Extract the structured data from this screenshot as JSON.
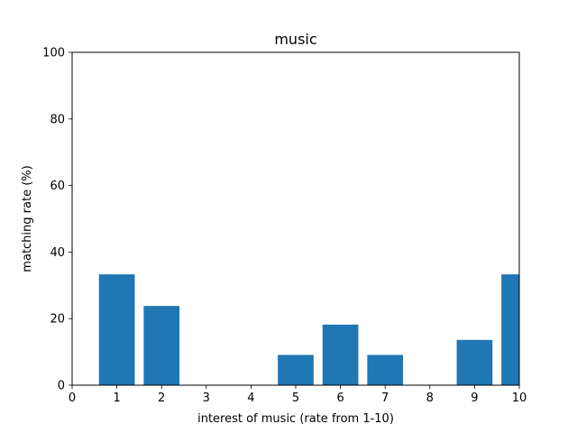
{
  "chart_data": {
    "type": "bar",
    "title": "music",
    "xlabel": "interest of music (rate from 1-10)",
    "ylabel": "matching rate (%)",
    "xlim": [
      0,
      10
    ],
    "ylim": [
      0,
      100
    ],
    "x_ticks": [
      0,
      1,
      2,
      3,
      4,
      5,
      6,
      7,
      8,
      9,
      10
    ],
    "y_ticks": [
      0,
      20,
      40,
      60,
      80,
      100
    ],
    "categories": [
      1,
      2,
      3,
      4,
      5,
      6,
      7,
      8,
      9,
      10
    ],
    "values": [
      33.3,
      23.8,
      0,
      0,
      9.1,
      18.2,
      9.1,
      0,
      13.6,
      33.3
    ],
    "bar_width": 0.8,
    "bar_color": "#1f77b4",
    "grid": false,
    "legend": "none"
  }
}
